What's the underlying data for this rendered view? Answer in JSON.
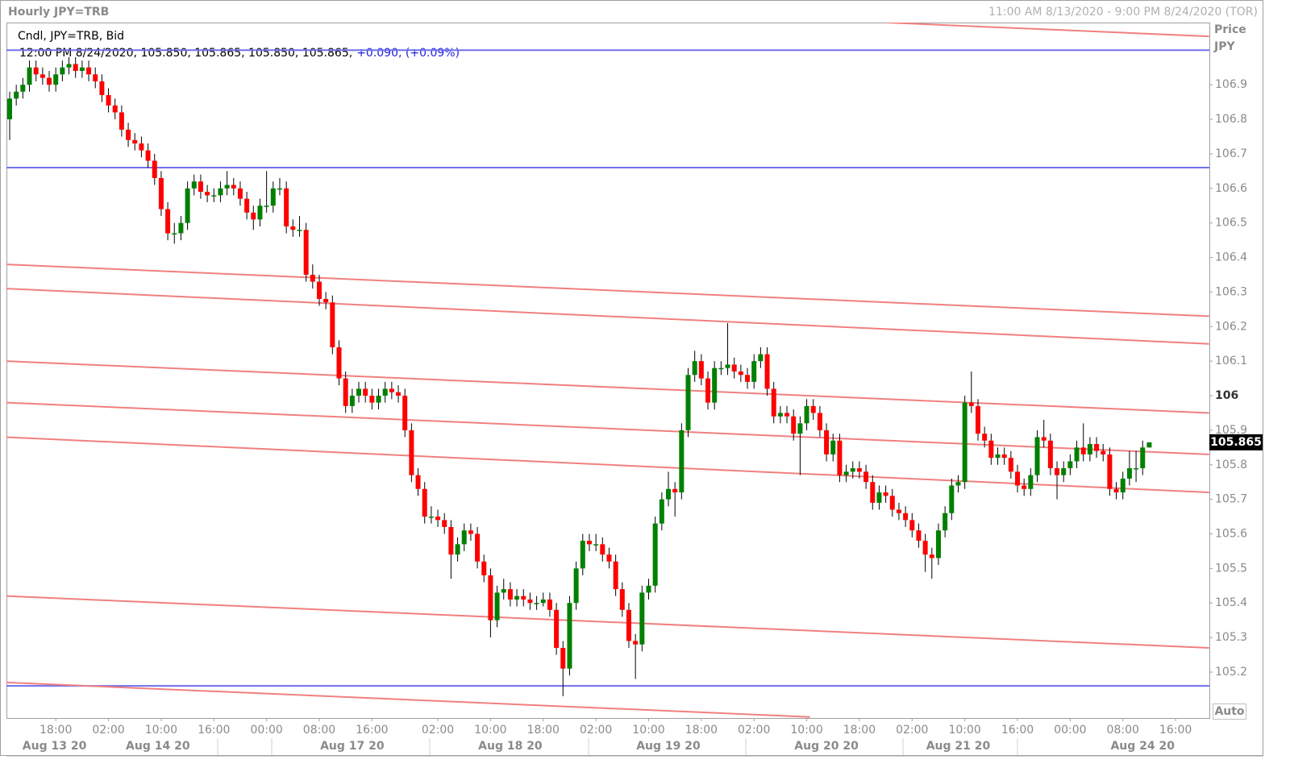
{
  "header": {
    "title": "Hourly JPY=TRB",
    "range": "11:00 AM 8/13/2020 - 9:00 PM 8/24/2020 (TOR)",
    "legend": "Cndl, JPY=TRB, Bid",
    "quote": "12:00 PM 8/24/2020, 105.850, 105.865, 105.850, 105.865,",
    "change": "+0.090, (+0.09%)"
  },
  "axis_header": {
    "price": "Price",
    "currency": "JPY",
    "auto": "Auto"
  },
  "chart_data": {
    "type": "candlestick",
    "up_color": "#008000",
    "down_color": "#ff0000",
    "ylim": [
      105.067,
      107.08
    ],
    "yticks": [
      105.2,
      105.3,
      105.4,
      105.5,
      105.6,
      105.7,
      105.8,
      105.9,
      106,
      106.1,
      106.2,
      106.3,
      106.4,
      106.5,
      106.6,
      106.7,
      106.8,
      106.9
    ],
    "last_price": 105.865,
    "xticks": [
      {
        "value": 7,
        "label": "18:00"
      },
      {
        "value": 15,
        "label": "02:00"
      },
      {
        "value": 23,
        "label": "10:00"
      },
      {
        "value": 31,
        "label": "16:00"
      },
      {
        "value": 39,
        "label": "00:00"
      },
      {
        "value": 47,
        "label": "08:00"
      },
      {
        "value": 55,
        "label": "16:00"
      },
      {
        "value": 65,
        "label": "02:00"
      },
      {
        "value": 73,
        "label": "10:00"
      },
      {
        "value": 81,
        "label": "18:00"
      },
      {
        "value": 89,
        "label": "02:00"
      },
      {
        "value": 97,
        "label": "10:00"
      },
      {
        "value": 105,
        "label": "18:00"
      },
      {
        "value": 113,
        "label": "02:00"
      },
      {
        "value": 121,
        "label": "10:00"
      },
      {
        "value": 129,
        "label": "18:00"
      },
      {
        "value": 137,
        "label": "02:00"
      },
      {
        "value": 145,
        "label": "10:00"
      },
      {
        "value": 153,
        "label": "16:00"
      },
      {
        "value": 161,
        "label": "00:00"
      },
      {
        "value": 169,
        "label": "08:00"
      },
      {
        "value": 177,
        "label": "16:00"
      }
    ],
    "date_ticks": [
      {
        "value": 6.8,
        "label": "Aug 13 20"
      },
      {
        "value": 22.5,
        "label": "Aug 14 20"
      },
      {
        "value": 52,
        "label": "Aug 17 20"
      },
      {
        "value": 76,
        "label": "Aug 18 20"
      },
      {
        "value": 100,
        "label": "Aug 19 20"
      },
      {
        "value": 124,
        "label": "Aug 20 20"
      },
      {
        "value": 144,
        "label": "Aug 21 20"
      },
      {
        "value": 172,
        "label": "Aug 24 20"
      }
    ],
    "hlines": {
      "color": "#7070ee",
      "values": [
        107.0,
        106.66,
        105.16
      ]
    },
    "trendlines": {
      "color": "#f08080",
      "lines": [
        {
          "start": [
            133.2,
            107.08
          ],
          "end": [
            182.1,
            107.04
          ]
        },
        {
          "start": [
            -0.5,
            106.38
          ],
          "end": [
            182.1,
            106.23
          ]
        },
        {
          "start": [
            -0.5,
            106.31
          ],
          "end": [
            182.1,
            106.15
          ]
        },
        {
          "start": [
            -0.5,
            106.1
          ],
          "end": [
            182.1,
            105.95
          ]
        },
        {
          "start": [
            -0.5,
            105.98
          ],
          "end": [
            182.1,
            105.83
          ]
        },
        {
          "start": [
            -0.5,
            105.88
          ],
          "end": [
            182.1,
            105.72
          ]
        },
        {
          "start": [
            -0.5,
            105.42
          ],
          "end": [
            182.1,
            105.27
          ]
        },
        {
          "start": [
            -0.5,
            105.17
          ],
          "end": [
            121.5,
            105.07
          ]
        }
      ]
    },
    "candles": [
      [
        106.8,
        106.88,
        106.74,
        106.86
      ],
      [
        106.86,
        106.9,
        106.84,
        106.88
      ],
      [
        106.88,
        106.92,
        106.86,
        106.9
      ],
      [
        106.9,
        106.97,
        106.88,
        106.95
      ],
      [
        106.95,
        106.97,
        106.91,
        106.93
      ],
      [
        106.93,
        106.95,
        106.9,
        106.92
      ],
      [
        106.92,
        106.94,
        106.88,
        106.9
      ],
      [
        106.9,
        106.95,
        106.88,
        106.93
      ],
      [
        106.93,
        106.97,
        106.91,
        106.95
      ],
      [
        106.95,
        106.98,
        106.93,
        106.96
      ],
      [
        106.96,
        106.98,
        106.92,
        106.94
      ],
      [
        106.94,
        106.97,
        106.92,
        106.95
      ],
      [
        106.95,
        106.97,
        106.91,
        106.93
      ],
      [
        106.93,
        106.95,
        106.89,
        106.91
      ],
      [
        106.91,
        106.93,
        106.85,
        106.87
      ],
      [
        106.87,
        106.89,
        106.82,
        106.84
      ],
      [
        106.84,
        106.86,
        106.8,
        106.82
      ],
      [
        106.82,
        106.84,
        106.75,
        106.77
      ],
      [
        106.77,
        106.79,
        106.72,
        106.74
      ],
      [
        106.74,
        106.76,
        106.71,
        106.73
      ],
      [
        106.73,
        106.75,
        106.69,
        106.71
      ],
      [
        106.71,
        106.73,
        106.66,
        106.68
      ],
      [
        106.68,
        106.7,
        106.61,
        106.63
      ],
      [
        106.63,
        106.65,
        106.52,
        106.54
      ],
      [
        106.54,
        106.56,
        106.45,
        106.47
      ],
      [
        106.47,
        106.5,
        106.44,
        106.47
      ],
      [
        106.47,
        106.52,
        106.45,
        106.5
      ],
      [
        106.5,
        106.62,
        106.48,
        106.6
      ],
      [
        106.6,
        106.64,
        106.58,
        106.62
      ],
      [
        106.62,
        106.64,
        106.57,
        106.59
      ],
      [
        106.59,
        106.61,
        106.56,
        106.58
      ],
      [
        106.58,
        106.6,
        106.56,
        106.58
      ],
      [
        106.58,
        106.62,
        106.56,
        106.6
      ],
      [
        106.6,
        106.65,
        106.58,
        106.61
      ],
      [
        106.61,
        106.63,
        106.58,
        106.6
      ],
      [
        106.6,
        106.62,
        106.55,
        106.57
      ],
      [
        106.57,
        106.59,
        106.51,
        106.53
      ],
      [
        106.53,
        106.55,
        106.48,
        106.51
      ],
      [
        106.51,
        106.57,
        106.49,
        106.55
      ],
      [
        106.55,
        106.65,
        106.53,
        106.55
      ],
      [
        106.55,
        106.62,
        106.53,
        106.6
      ],
      [
        106.6,
        106.63,
        106.58,
        106.6
      ],
      [
        106.6,
        106.62,
        106.47,
        106.49
      ],
      [
        106.49,
        106.51,
        106.46,
        106.48
      ],
      [
        106.48,
        106.52,
        106.46,
        106.48
      ],
      [
        106.48,
        106.5,
        106.33,
        106.35
      ],
      [
        106.35,
        106.38,
        106.31,
        106.33
      ],
      [
        106.33,
        106.35,
        106.26,
        106.28
      ],
      [
        106.28,
        106.3,
        106.25,
        106.27
      ],
      [
        106.27,
        106.29,
        106.12,
        106.14
      ],
      [
        106.14,
        106.16,
        106.03,
        106.05
      ],
      [
        106.05,
        106.07,
        105.95,
        105.97
      ],
      [
        105.97,
        106.02,
        105.95,
        106.0
      ],
      [
        106.0,
        106.04,
        105.98,
        106.02
      ],
      [
        106.02,
        106.04,
        105.98,
        106.0
      ],
      [
        106.0,
        106.02,
        105.96,
        105.98
      ],
      [
        105.98,
        106.02,
        105.96,
        106.0
      ],
      [
        106.0,
        106.04,
        105.98,
        106.02
      ],
      [
        106.02,
        106.04,
        105.99,
        106.01
      ],
      [
        106.01,
        106.03,
        105.98,
        106.0
      ],
      [
        106.0,
        106.02,
        105.88,
        105.9
      ],
      [
        105.9,
        105.92,
        105.75,
        105.77
      ],
      [
        105.77,
        105.79,
        105.71,
        105.73
      ],
      [
        105.73,
        105.75,
        105.63,
        105.65
      ],
      [
        105.65,
        105.68,
        105.63,
        105.65
      ],
      [
        105.65,
        105.67,
        105.62,
        105.64
      ],
      [
        105.64,
        105.66,
        105.6,
        105.62
      ],
      [
        105.62,
        105.64,
        105.47,
        105.54
      ],
      [
        105.54,
        105.59,
        105.52,
        105.57
      ],
      [
        105.57,
        105.63,
        105.55,
        105.61
      ],
      [
        105.61,
        105.63,
        105.58,
        105.6
      ],
      [
        105.6,
        105.62,
        105.5,
        105.52
      ],
      [
        105.52,
        105.54,
        105.46,
        105.48
      ],
      [
        105.48,
        105.5,
        105.3,
        105.35
      ],
      [
        105.35,
        105.45,
        105.33,
        105.43
      ],
      [
        105.43,
        105.47,
        105.41,
        105.44
      ],
      [
        105.44,
        105.46,
        105.39,
        105.41
      ],
      [
        105.41,
        105.44,
        105.39,
        105.42
      ],
      [
        105.42,
        105.44,
        105.39,
        105.41
      ],
      [
        105.41,
        105.43,
        105.38,
        105.4
      ],
      [
        105.4,
        105.42,
        105.38,
        105.4
      ],
      [
        105.4,
        105.43,
        105.39,
        105.41
      ],
      [
        105.41,
        105.43,
        105.36,
        105.38
      ],
      [
        105.38,
        105.4,
        105.25,
        105.27
      ],
      [
        105.27,
        105.29,
        105.13,
        105.21
      ],
      [
        105.21,
        105.42,
        105.19,
        105.4
      ],
      [
        105.4,
        105.52,
        105.38,
        105.5
      ],
      [
        105.5,
        105.6,
        105.48,
        105.58
      ],
      [
        105.58,
        105.6,
        105.55,
        105.57
      ],
      [
        105.57,
        105.6,
        105.55,
        105.57
      ],
      [
        105.57,
        105.59,
        105.52,
        105.54
      ],
      [
        105.54,
        105.56,
        105.5,
        105.52
      ],
      [
        105.52,
        105.54,
        105.42,
        105.44
      ],
      [
        105.44,
        105.46,
        105.36,
        105.38
      ],
      [
        105.38,
        105.4,
        105.27,
        105.29
      ],
      [
        105.29,
        105.31,
        105.18,
        105.28
      ],
      [
        105.28,
        105.45,
        105.26,
        105.43
      ],
      [
        105.43,
        105.47,
        105.41,
        105.45
      ],
      [
        105.45,
        105.65,
        105.43,
        105.63
      ],
      [
        105.63,
        105.72,
        105.61,
        105.7
      ],
      [
        105.7,
        105.78,
        105.68,
        105.73
      ],
      [
        105.73,
        105.75,
        105.65,
        105.72
      ],
      [
        105.72,
        105.92,
        105.7,
        105.9
      ],
      [
        105.9,
        106.08,
        105.88,
        106.06
      ],
      [
        106.06,
        106.13,
        106.04,
        106.1
      ],
      [
        106.1,
        106.12,
        106.03,
        106.05
      ],
      [
        106.05,
        106.07,
        105.96,
        105.98
      ],
      [
        105.98,
        106.1,
        105.96,
        106.08
      ],
      [
        106.08,
        106.1,
        106.06,
        106.08
      ],
      [
        106.08,
        106.21,
        106.06,
        106.09
      ],
      [
        106.09,
        106.11,
        106.05,
        106.07
      ],
      [
        106.07,
        106.09,
        106.04,
        106.06
      ],
      [
        106.06,
        106.08,
        106.02,
        106.04
      ],
      [
        106.04,
        106.12,
        106.02,
        106.1
      ],
      [
        106.1,
        106.14,
        106.08,
        106.12
      ],
      [
        106.12,
        106.14,
        106.0,
        106.02
      ],
      [
        106.02,
        106.04,
        105.92,
        105.94
      ],
      [
        105.94,
        105.97,
        105.92,
        105.95
      ],
      [
        105.95,
        105.97,
        105.92,
        105.94
      ],
      [
        105.94,
        105.96,
        105.87,
        105.89
      ],
      [
        105.89,
        105.94,
        105.77,
        105.92
      ],
      [
        105.92,
        105.99,
        105.9,
        105.97
      ],
      [
        105.97,
        105.99,
        105.93,
        105.95
      ],
      [
        105.95,
        105.97,
        105.88,
        105.9
      ],
      [
        105.9,
        105.92,
        105.81,
        105.83
      ],
      [
        105.83,
        105.89,
        105.81,
        105.87
      ],
      [
        105.87,
        105.89,
        105.75,
        105.77
      ],
      [
        105.77,
        105.8,
        105.75,
        105.78
      ],
      [
        105.78,
        105.81,
        105.76,
        105.79
      ],
      [
        105.79,
        105.81,
        105.76,
        105.78
      ],
      [
        105.78,
        105.8,
        105.73,
        105.75
      ],
      [
        105.75,
        105.77,
        105.67,
        105.69
      ],
      [
        105.69,
        105.74,
        105.67,
        105.72
      ],
      [
        105.72,
        105.74,
        105.69,
        105.71
      ],
      [
        105.71,
        105.73,
        105.65,
        105.67
      ],
      [
        105.67,
        105.69,
        105.64,
        105.66
      ],
      [
        105.66,
        105.68,
        105.62,
        105.64
      ],
      [
        105.64,
        105.66,
        105.59,
        105.61
      ],
      [
        105.61,
        105.63,
        105.56,
        105.58
      ],
      [
        105.58,
        105.6,
        105.49,
        105.54
      ],
      [
        105.54,
        105.56,
        105.47,
        105.53
      ],
      [
        105.53,
        105.63,
        105.51,
        105.61
      ],
      [
        105.61,
        105.68,
        105.59,
        105.66
      ],
      [
        105.66,
        105.76,
        105.64,
        105.74
      ],
      [
        105.74,
        105.77,
        105.72,
        105.75
      ],
      [
        105.75,
        106.0,
        105.73,
        105.98
      ],
      [
        105.98,
        106.07,
        105.95,
        105.97
      ],
      [
        105.97,
        105.99,
        105.87,
        105.89
      ],
      [
        105.89,
        105.91,
        105.85,
        105.87
      ],
      [
        105.87,
        105.89,
        105.8,
        105.82
      ],
      [
        105.82,
        105.85,
        105.8,
        105.83
      ],
      [
        105.83,
        105.85,
        105.8,
        105.82
      ],
      [
        105.82,
        105.84,
        105.76,
        105.78
      ],
      [
        105.78,
        105.8,
        105.72,
        105.74
      ],
      [
        105.74,
        105.76,
        105.71,
        105.73
      ],
      [
        105.73,
        105.79,
        105.71,
        105.77
      ],
      [
        105.77,
        105.9,
        105.75,
        105.88
      ],
      [
        105.88,
        105.93,
        105.85,
        105.87
      ],
      [
        105.87,
        105.89,
        105.77,
        105.79
      ],
      [
        105.79,
        105.81,
        105.7,
        105.77
      ],
      [
        105.77,
        105.81,
        105.75,
        105.79
      ],
      [
        105.79,
        105.83,
        105.77,
        105.81
      ],
      [
        105.81,
        105.87,
        105.79,
        105.85
      ],
      [
        105.85,
        105.92,
        105.81,
        105.83
      ],
      [
        105.83,
        105.88,
        105.81,
        105.86
      ],
      [
        105.86,
        105.88,
        105.82,
        105.84
      ],
      [
        105.84,
        105.86,
        105.81,
        105.83
      ],
      [
        105.83,
        105.85,
        105.71,
        105.73
      ],
      [
        105.73,
        105.75,
        105.7,
        105.72
      ],
      [
        105.72,
        105.78,
        105.7,
        105.76
      ],
      [
        105.76,
        105.84,
        105.74,
        105.79
      ],
      [
        105.79,
        105.84,
        105.75,
        105.79
      ],
      [
        105.79,
        105.87,
        105.77,
        105.85
      ],
      [
        105.85,
        105.865,
        105.85,
        105.865
      ]
    ]
  }
}
